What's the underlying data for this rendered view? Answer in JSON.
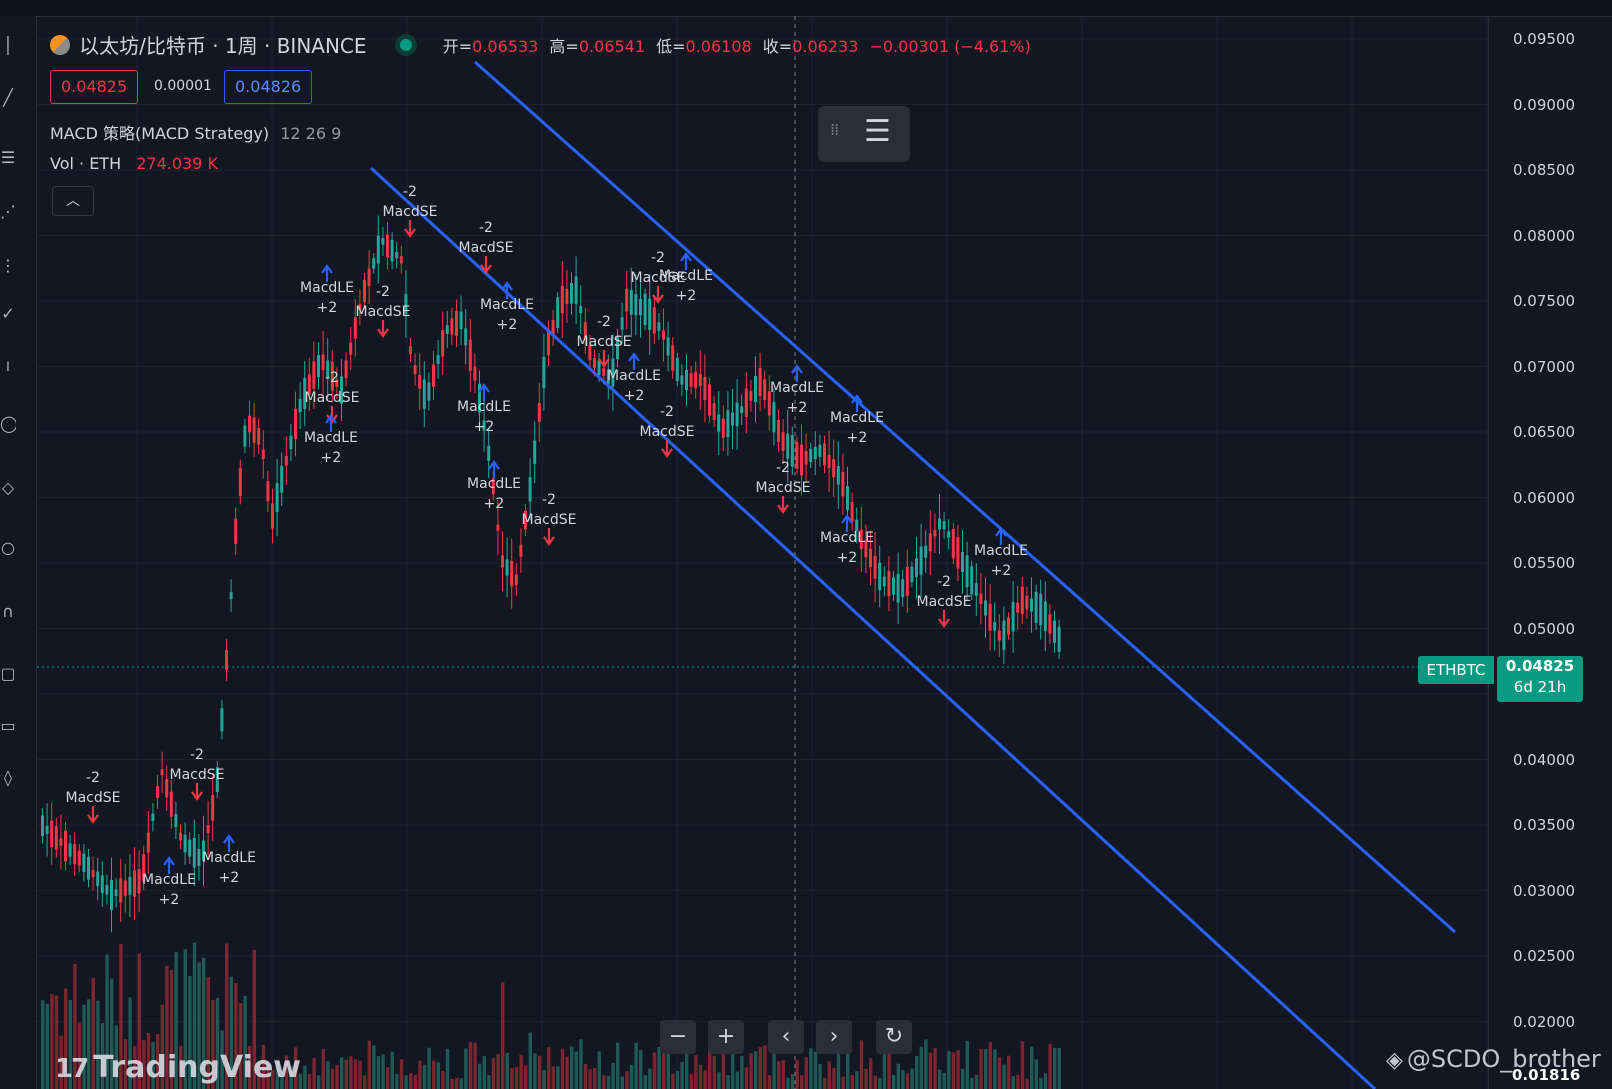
{
  "legend": {
    "title": "以太坊/比特币 · 1周 · BINANCE",
    "ohlc": [
      {
        "label": "开=",
        "value": "0.06533"
      },
      {
        "label": "高=",
        "value": "0.06541"
      },
      {
        "label": "低=",
        "value": "0.06108"
      },
      {
        "label": "收=",
        "value": "0.06233"
      }
    ],
    "change": "−0.00301 (−4.61%)",
    "bid": "0.04825",
    "spread": "0.00001",
    "ask": "0.04826",
    "indicator_name": "MACD 策略(MACD Strategy)",
    "indicator_params": "12 26 9",
    "vol_label": "Vol · ETH",
    "vol_value": "274.039 K"
  },
  "colors": {
    "up": "#26a69a",
    "down": "#f23645",
    "channel": "#2962ff",
    "bg": "#131722",
    "badge": "#089981"
  },
  "price_axis": {
    "ticks": [
      "0.09500",
      "0.09000",
      "0.08500",
      "0.08000",
      "0.07500",
      "0.07000",
      "0.06500",
      "0.06000",
      "0.05500",
      "0.05000",
      "0.04500",
      "0.04000",
      "0.03500",
      "0.03000",
      "0.02500",
      "0.02000"
    ],
    "symbol_tag": "ETHBTC",
    "last_price": "0.04825",
    "countdown": "6d 21h",
    "bottom_value": "0.01816"
  },
  "signals": [
    {
      "top": "-2",
      "bottom": "MacdSE",
      "dir": "down"
    },
    {
      "top": "MacdLE",
      "bottom": "+2",
      "dir": "up"
    },
    {
      "top": "-2",
      "bottom": "MacdSE",
      "dir": "down"
    },
    {
      "top": "MacdLE",
      "bottom": "+2",
      "dir": "up"
    },
    {
      "top": "-2",
      "bottom": "MacdSE",
      "dir": "down"
    },
    {
      "top": "MacdLE",
      "bottom": "+2",
      "dir": "up"
    },
    {
      "top": "-2",
      "bottom": "MacdSE",
      "dir": "down"
    },
    {
      "top": "MacdLE",
      "bottom": "+2",
      "dir": "up"
    },
    {
      "top": "-2",
      "bottom": "MacdSE",
      "dir": "down"
    },
    {
      "top": "-2",
      "bottom": "MacdSE",
      "dir": "down"
    },
    {
      "top": "MacdLE",
      "bottom": "+2",
      "dir": "up"
    },
    {
      "top": "MacdLE",
      "bottom": "+2",
      "dir": "up"
    },
    {
      "top": "MacdLE",
      "bottom": "+2",
      "dir": "up"
    },
    {
      "top": "-2",
      "bottom": "MacdSE",
      "dir": "down"
    },
    {
      "top": "-2",
      "bottom": "MacdSE",
      "dir": "down"
    },
    {
      "top": "-2",
      "bottom": "MacdSE",
      "dir": "down"
    },
    {
      "top": "MacdLE",
      "bottom": "+2",
      "dir": "up"
    },
    {
      "top": "MacdLE",
      "bottom": "+2",
      "dir": "up"
    },
    {
      "top": "-2",
      "bottom": "MacdSE",
      "dir": "down"
    },
    {
      "top": "MacdLE",
      "bottom": "+2",
      "dir": "up"
    },
    {
      "top": "-2",
      "bottom": "MacdSE",
      "dir": "down"
    },
    {
      "top": "MacdLE",
      "bottom": "+2",
      "dir": "up"
    },
    {
      "top": "MacdLE",
      "bottom": "+2",
      "dir": "up"
    },
    {
      "top": "-2",
      "bottom": "MacdSE",
      "dir": "down"
    },
    {
      "top": "MacdLE",
      "bottom": "+2",
      "dir": "up"
    }
  ],
  "nav": {
    "zoom_out": "−",
    "zoom_in": "+",
    "prev": "‹",
    "next": "›",
    "reset": "↻"
  },
  "branding": {
    "watermark": "TradingView",
    "credit": "@SCDO_brother"
  },
  "icons": [
    "cursor-icon",
    "trend-line-icon",
    "fib-icon",
    "pattern-icon",
    "measure-icon",
    "brush-icon",
    "text-icon",
    "circle-icon",
    "ruler-icon",
    "zoom-icon",
    "magnet-icon",
    "lock-icon",
    "eye-icon",
    "trash-icon"
  ]
}
